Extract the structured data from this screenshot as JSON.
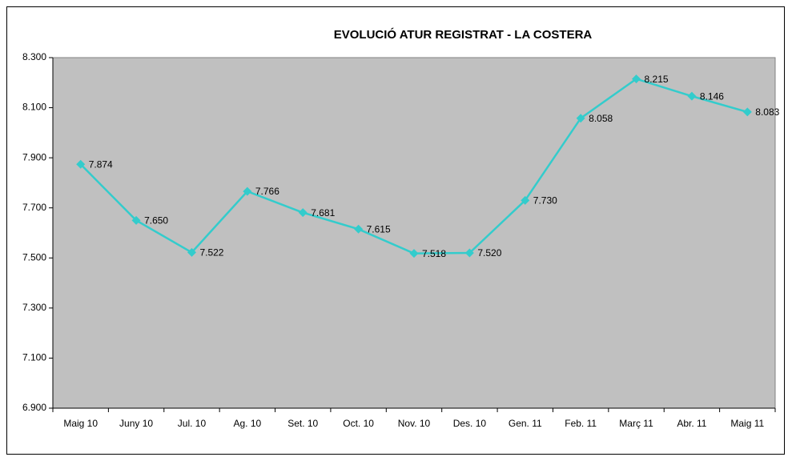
{
  "chart_data": {
    "type": "line",
    "title": "EVOLUCIÓ ATUR REGISTRAT - LA COSTERA",
    "categories": [
      "Maig 10",
      "Juny 10",
      "Jul. 10",
      "Ag. 10",
      "Set. 10",
      "Oct. 10",
      "Nov. 10",
      "Des. 10",
      "Gen. 11",
      "Feb. 11",
      "Març 11",
      "Abr. 11",
      "Maig 11"
    ],
    "series": [
      {
        "name": "Atur registrat",
        "color": "#33cccc",
        "values": [
          7874,
          7650,
          7522,
          7766,
          7681,
          7615,
          7518,
          7520,
          7730,
          8058,
          8215,
          8146,
          8083
        ],
        "value_labels": [
          "7.874",
          "7.650",
          "7.522",
          "7.766",
          "7.681",
          "7.615",
          "7.518",
          "7.520",
          "7.730",
          "8.058",
          "8.215",
          "8.146",
          "8.083"
        ]
      }
    ],
    "ylim": [
      6900,
      8300
    ],
    "yticks": [
      {
        "value": 6900,
        "label": "6.900"
      },
      {
        "value": 7100,
        "label": "7.100"
      },
      {
        "value": 7300,
        "label": "7.300"
      },
      {
        "value": 7500,
        "label": "7.500"
      },
      {
        "value": 7700,
        "label": "7.700"
      },
      {
        "value": 7900,
        "label": "7.900"
      },
      {
        "value": 8100,
        "label": "8.100"
      },
      {
        "value": 8300,
        "label": "8.300"
      }
    ],
    "grid": false,
    "plot_background": "#c0c0c0"
  }
}
